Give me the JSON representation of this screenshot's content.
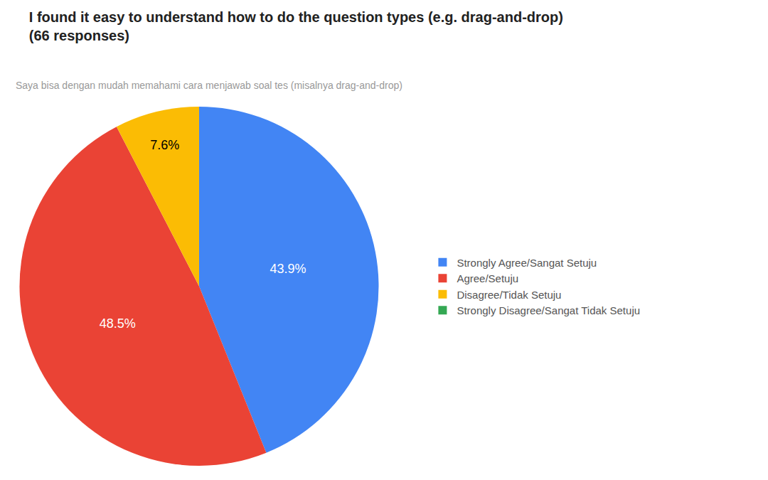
{
  "chart_data": {
    "type": "pie",
    "title": "I found it easy to understand how to do the question types (e.g. drag-and-drop)\n(66 responses)",
    "subtitle": "Saya bisa dengan mudah memahami cara menjawab soal tes (misalnya drag-and-drop)",
    "categories": [
      "Strongly Agree/Sangat Setuju",
      "Agree/Setuju",
      "Disagree/Tidak Setuju",
      "Strongly Disagree/Sangat Tidak Setuju"
    ],
    "values": [
      43.9,
      48.5,
      7.6,
      0.0
    ],
    "value_labels": [
      "43.9%",
      "48.5%",
      "7.6%",
      null
    ],
    "colors": [
      "#4285F4",
      "#EA4335",
      "#FBBC04",
      "#34A853"
    ],
    "data_labels": true,
    "legend": "right"
  }
}
